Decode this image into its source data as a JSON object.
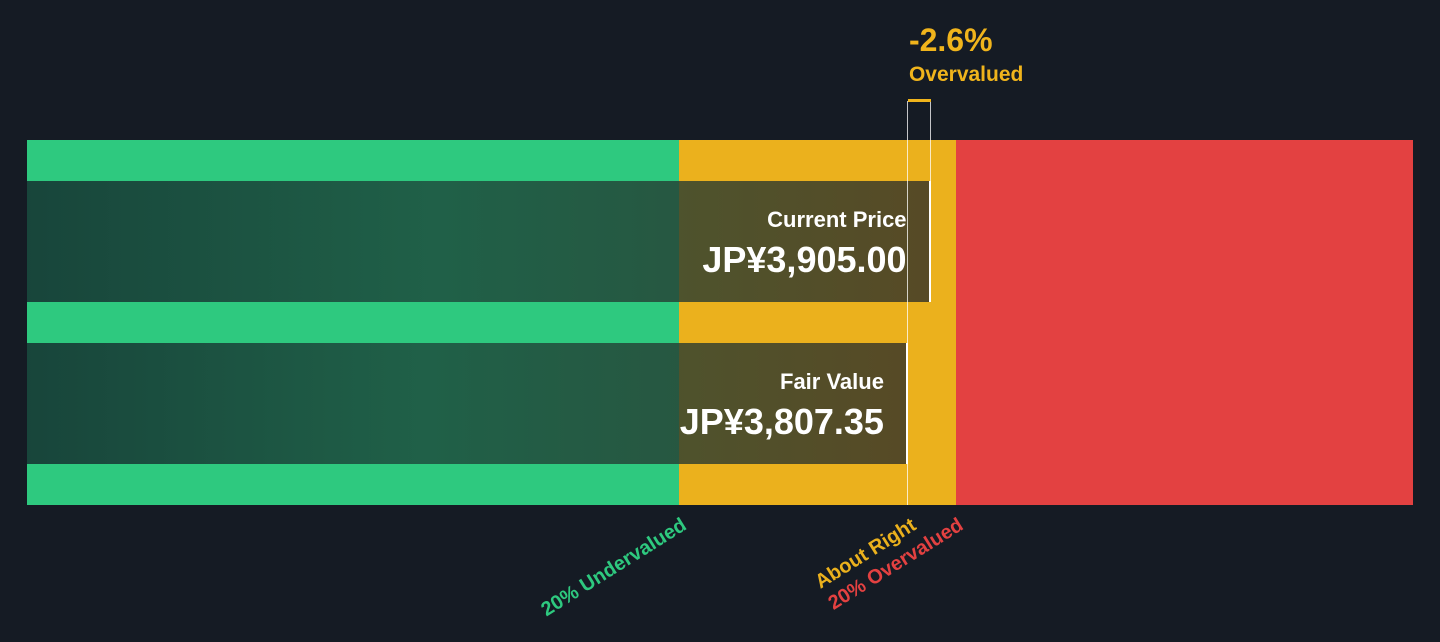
{
  "chart_data": {
    "type": "bar",
    "scale": {
      "min": 0,
      "max": 5990,
      "unit": "JP¥"
    },
    "zones": [
      {
        "label": "20% Undervalued",
        "from": 0,
        "to": 2817,
        "color": "#2ec97f"
      },
      {
        "label": "About Right",
        "from": 2817,
        "to": 4014,
        "color": "#ebb11d"
      },
      {
        "label": "20% Overvalued",
        "from": 4014,
        "to": 5990,
        "color": "#e34141"
      }
    ],
    "bars": [
      {
        "label": "Current Price",
        "value": 3905.0,
        "display": "JP¥3,905.00"
      },
      {
        "label": "Fair Value",
        "value": 3807.35,
        "display": "JP¥3,807.35"
      }
    ],
    "difference": {
      "percent": "-2.6%",
      "status": "Overvalued",
      "color": "#f0b41c"
    }
  }
}
